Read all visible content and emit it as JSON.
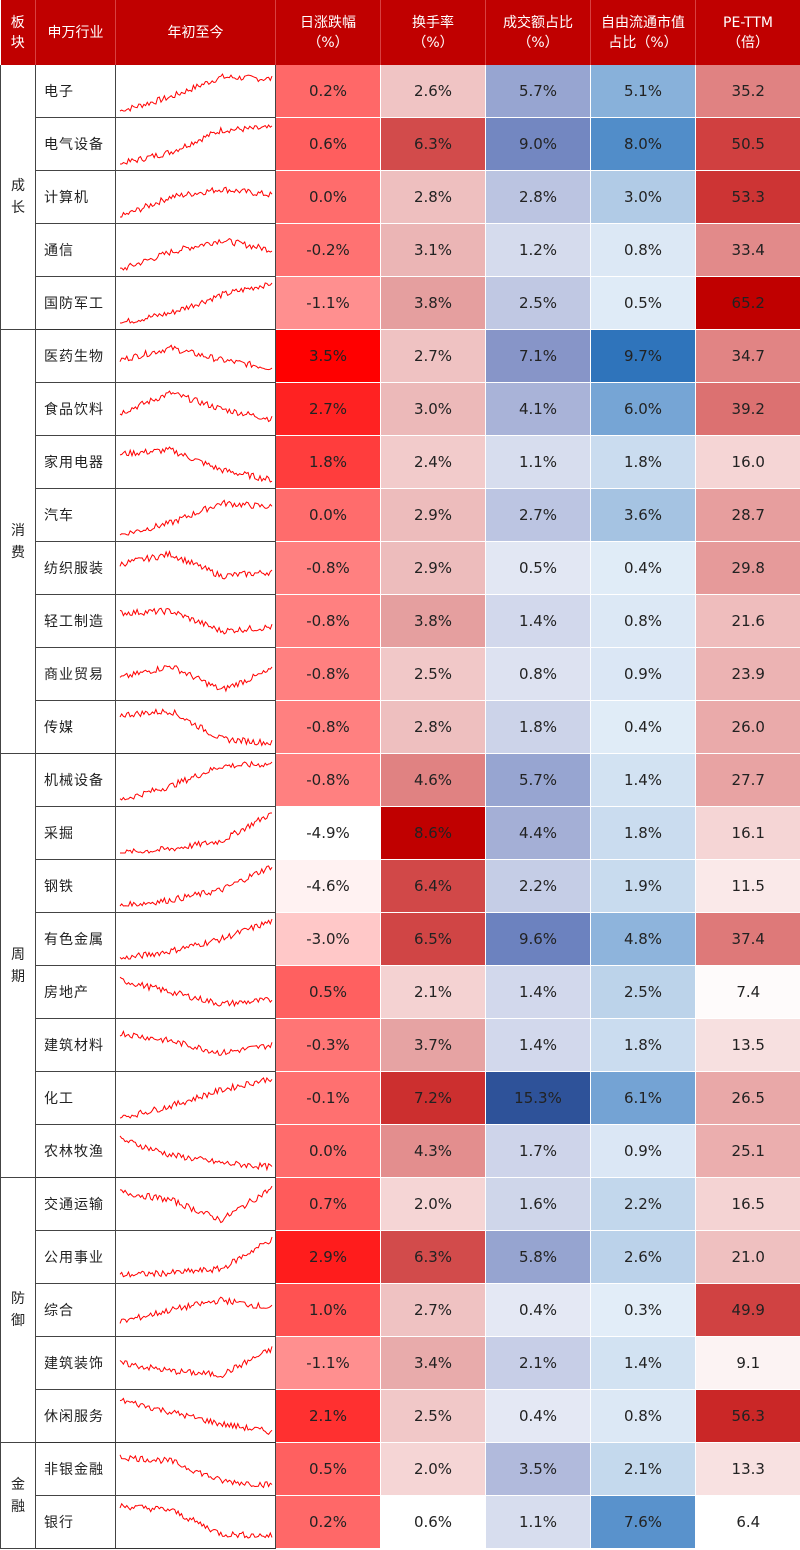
{
  "headers": {
    "sector": [
      "板",
      "块"
    ],
    "industry": "申万行业",
    "ytd": "年初至今",
    "daily_change": [
      "日涨跌幅",
      "（%）"
    ],
    "turnover": [
      "换手率",
      "（%）"
    ],
    "volume_share": [
      "成交额占比",
      "（%）"
    ],
    "float_cap_share": [
      "自由流通市值",
      "占比（%）"
    ],
    "pe": [
      "PE-TTM",
      "（倍）"
    ]
  },
  "groups": [
    {
      "name": [
        "成",
        "长"
      ],
      "rows": [
        {
          "industry": "电子",
          "daily": "0.2%",
          "turnover": "2.6%",
          "volume": "5.7%",
          "cap": "5.1%",
          "pe": "35.2"
        },
        {
          "industry": "电气设备",
          "daily": "0.6%",
          "turnover": "6.3%",
          "volume": "9.0%",
          "cap": "8.0%",
          "pe": "50.5"
        },
        {
          "industry": "计算机",
          "daily": "0.0%",
          "turnover": "2.8%",
          "volume": "2.8%",
          "cap": "3.0%",
          "pe": "53.3"
        },
        {
          "industry": "通信",
          "daily": "-0.2%",
          "turnover": "3.1%",
          "volume": "1.2%",
          "cap": "0.8%",
          "pe": "33.4"
        },
        {
          "industry": "国防军工",
          "daily": "-1.1%",
          "turnover": "3.8%",
          "volume": "2.5%",
          "cap": "0.5%",
          "pe": "65.2"
        }
      ]
    },
    {
      "name": [
        "消",
        "费"
      ],
      "rows": [
        {
          "industry": "医药生物",
          "daily": "3.5%",
          "turnover": "2.7%",
          "volume": "7.1%",
          "cap": "9.7%",
          "pe": "34.7"
        },
        {
          "industry": "食品饮料",
          "daily": "2.7%",
          "turnover": "3.0%",
          "volume": "4.1%",
          "cap": "6.0%",
          "pe": "39.2"
        },
        {
          "industry": "家用电器",
          "daily": "1.8%",
          "turnover": "2.4%",
          "volume": "1.1%",
          "cap": "1.8%",
          "pe": "16.0"
        },
        {
          "industry": "汽车",
          "daily": "0.0%",
          "turnover": "2.9%",
          "volume": "2.7%",
          "cap": "3.6%",
          "pe": "28.7"
        },
        {
          "industry": "纺织服装",
          "daily": "-0.8%",
          "turnover": "2.9%",
          "volume": "0.5%",
          "cap": "0.4%",
          "pe": "29.8"
        },
        {
          "industry": "轻工制造",
          "daily": "-0.8%",
          "turnover": "3.8%",
          "volume": "1.4%",
          "cap": "0.8%",
          "pe": "21.6"
        },
        {
          "industry": "商业贸易",
          "daily": "-0.8%",
          "turnover": "2.5%",
          "volume": "0.8%",
          "cap": "0.9%",
          "pe": "23.9"
        },
        {
          "industry": "传媒",
          "daily": "-0.8%",
          "turnover": "2.8%",
          "volume": "1.8%",
          "cap": "0.4%",
          "pe": "26.0"
        }
      ]
    },
    {
      "name": [
        "周",
        "期"
      ],
      "rows": [
        {
          "industry": "机械设备",
          "daily": "-0.8%",
          "turnover": "4.6%",
          "volume": "5.7%",
          "cap": "1.4%",
          "pe": "27.7"
        },
        {
          "industry": "采掘",
          "daily": "-4.9%",
          "turnover": "8.6%",
          "volume": "4.4%",
          "cap": "1.8%",
          "pe": "16.1"
        },
        {
          "industry": "钢铁",
          "daily": "-4.6%",
          "turnover": "6.4%",
          "volume": "2.2%",
          "cap": "1.9%",
          "pe": "11.5"
        },
        {
          "industry": "有色金属",
          "daily": "-3.0%",
          "turnover": "6.5%",
          "volume": "9.6%",
          "cap": "4.8%",
          "pe": "37.4"
        },
        {
          "industry": "房地产",
          "daily": "0.5%",
          "turnover": "2.1%",
          "volume": "1.4%",
          "cap": "2.5%",
          "pe": "7.4"
        },
        {
          "industry": "建筑材料",
          "daily": "-0.3%",
          "turnover": "3.7%",
          "volume": "1.4%",
          "cap": "1.8%",
          "pe": "13.5"
        },
        {
          "industry": "化工",
          "daily": "-0.1%",
          "turnover": "7.2%",
          "volume": "15.3%",
          "cap": "6.1%",
          "pe": "26.5"
        },
        {
          "industry": "农林牧渔",
          "daily": "0.0%",
          "turnover": "4.3%",
          "volume": "1.7%",
          "cap": "0.9%",
          "pe": "25.1"
        }
      ]
    },
    {
      "name": [
        "防",
        "御"
      ],
      "rows": [
        {
          "industry": "交通运输",
          "daily": "0.7%",
          "turnover": "2.0%",
          "volume": "1.6%",
          "cap": "2.2%",
          "pe": "16.5"
        },
        {
          "industry": "公用事业",
          "daily": "2.9%",
          "turnover": "6.3%",
          "volume": "5.8%",
          "cap": "2.6%",
          "pe": "21.0"
        },
        {
          "industry": "综合",
          "daily": "1.0%",
          "turnover": "2.7%",
          "volume": "0.4%",
          "cap": "0.3%",
          "pe": "49.9"
        },
        {
          "industry": "建筑装饰",
          "daily": "-1.1%",
          "turnover": "3.4%",
          "volume": "2.1%",
          "cap": "1.4%",
          "pe": "9.1"
        },
        {
          "industry": "休闲服务",
          "daily": "2.1%",
          "turnover": "2.5%",
          "volume": "0.4%",
          "cap": "0.8%",
          "pe": "56.3"
        }
      ]
    },
    {
      "name": [
        "金",
        "融"
      ],
      "rows": [
        {
          "industry": "非银金融",
          "daily": "0.5%",
          "turnover": "2.0%",
          "volume": "3.5%",
          "cap": "2.1%",
          "pe": "13.3"
        },
        {
          "industry": "银行",
          "daily": "0.2%",
          "turnover": "0.6%",
          "volume": "1.1%",
          "cap": "7.6%",
          "pe": "6.4"
        }
      ]
    }
  ],
  "sparkline_trends": [
    [
      0,
      0.35,
      0.85,
      0.8
    ],
    [
      0,
      0.3,
      0.85,
      0.9
    ],
    [
      0,
      0.5,
      0.7,
      0.55
    ],
    [
      0,
      0.45,
      0.75,
      0.5
    ],
    [
      0,
      0.25,
      0.7,
      1.0
    ],
    [
      0.4,
      0.7,
      0.4,
      0.2
    ],
    [
      0.4,
      0.9,
      0.5,
      0.25
    ],
    [
      0.7,
      0.8,
      0.3,
      0.05
    ],
    [
      0,
      0.3,
      0.8,
      0.7
    ],
    [
      0.6,
      0.85,
      0.3,
      0.4
    ],
    [
      0.7,
      0.75,
      0.25,
      0.35
    ],
    [
      0.4,
      0.7,
      0.1,
      0.6
    ],
    [
      0.8,
      0.9,
      0.2,
      0.1
    ],
    [
      0,
      0.35,
      0.85,
      0.9
    ],
    [
      0,
      0.1,
      0.3,
      1.0
    ],
    [
      0,
      0.15,
      0.4,
      1.0
    ],
    [
      0,
      0.2,
      0.5,
      0.95
    ],
    [
      0.8,
      0.5,
      0.2,
      0.3
    ],
    [
      0.8,
      0.6,
      0.3,
      0.5
    ],
    [
      0,
      0.3,
      0.7,
      1.0
    ],
    [
      0.8,
      0.4,
      0.2,
      0.1
    ],
    [
      0.8,
      0.6,
      0.1,
      0.9
    ],
    [
      0.05,
      0.1,
      0.2,
      0.95
    ],
    [
      0.2,
      0.5,
      0.75,
      0.55
    ],
    [
      0.5,
      0.3,
      0.2,
      0.85
    ],
    [
      0.9,
      0.6,
      0.3,
      0.1
    ],
    [
      0.8,
      0.7,
      0.2,
      0.1
    ],
    [
      0.9,
      0.8,
      0.2,
      0.15
    ]
  ],
  "palette": {
    "header_bg": "#c00000",
    "daily_colors": {
      "-4.9%": "#ffffff",
      "-4.6%": "#fff2f2",
      "-3.0%": "#ffc8c8",
      "-1.1%": "#ff8f8f",
      "-0.8%": "#ff8080",
      "-0.3%": "#ff7575",
      "-0.2%": "#ff7272",
      "-0.1%": "#ff7070",
      "0.0%": "#ff6c6c",
      "0.2%": "#ff6868",
      "0.5%": "#ff6060",
      "0.6%": "#ff5e5e",
      "0.7%": "#ff5b5b",
      "1.0%": "#ff5252",
      "1.8%": "#ff3d3d",
      "2.1%": "#ff3030",
      "2.7%": "#ff2222",
      "2.9%": "#ff1c1c",
      "3.5%": "#ff0000"
    },
    "turnover_colors": {
      "0.6%": "#ffffff",
      "2.0%": "#f5d5d5",
      "2.1%": "#f4d2d2",
      "2.4%": "#f2cbcb",
      "2.5%": "#f1c8c8",
      "2.6%": "#f0c4c4",
      "2.7%": "#efc2c2",
      "2.8%": "#eebfbf",
      "2.9%": "#edbcbc",
      "3.0%": "#ecb9b9",
      "3.1%": "#ebb5b5",
      "3.4%": "#e8abab",
      "3.7%": "#e6a3a3",
      "3.8%": "#e59f9f",
      "4.3%": "#e38e8e",
      "4.6%": "#e08282",
      "6.3%": "#d24b4b",
      "6.4%": "#d14848",
      "6.5%": "#d04545",
      "7.2%": "#cc2f2f",
      "8.6%": "#c00000"
    },
    "volume_colors": {
      "0.4%": "#e4e8f4",
      "0.5%": "#e2e7f3",
      "0.8%": "#dde2f1",
      "1.1%": "#d7ddee",
      "1.2%": "#d5dbed",
      "1.4%": "#d2d8ec",
      "1.6%": "#cfd6ea",
      "1.7%": "#ced4ea",
      "1.8%": "#ccd3e9",
      "2.1%": "#c7cee7",
      "2.2%": "#c5cde6",
      "2.5%": "#c0c8e3",
      "2.7%": "#bcc5e2",
      "2.8%": "#bbc4e1",
      "3.5%": "#b1badc",
      "4.1%": "#a9b3d8",
      "4.4%": "#a4afd6",
      "5.7%": "#97a5d1",
      "5.8%": "#96a4d0",
      "7.1%": "#8795c8",
      "9.0%": "#7387c1",
      "9.6%": "#6c82bf",
      "15.3%": "#2e5299"
    },
    "cap_colors": {
      "0.3%": "#e2edf8",
      "0.4%": "#e0ecf7",
      "0.5%": "#dfebf7",
      "0.8%": "#dce8f5",
      "0.9%": "#dbe7f5",
      "1.4%": "#d2e2f2",
      "1.8%": "#cadcef",
      "1.9%": "#c8dbee",
      "2.1%": "#c4d9ed",
      "2.2%": "#c2d7ec",
      "2.5%": "#bcd3ea",
      "2.6%": "#bbd2ea",
      "3.0%": "#b1cbe6",
      "3.6%": "#a5c3e2",
      "4.8%": "#8eb4dc",
      "5.1%": "#88b1da",
      "6.0%": "#76a5d5",
      "6.1%": "#74a3d4",
      "7.6%": "#5992cc",
      "8.0%": "#518dc9",
      "9.7%": "#2f74bb"
    },
    "pe_colors": {
      "6.4%": "#ffffff"
    }
  }
}
